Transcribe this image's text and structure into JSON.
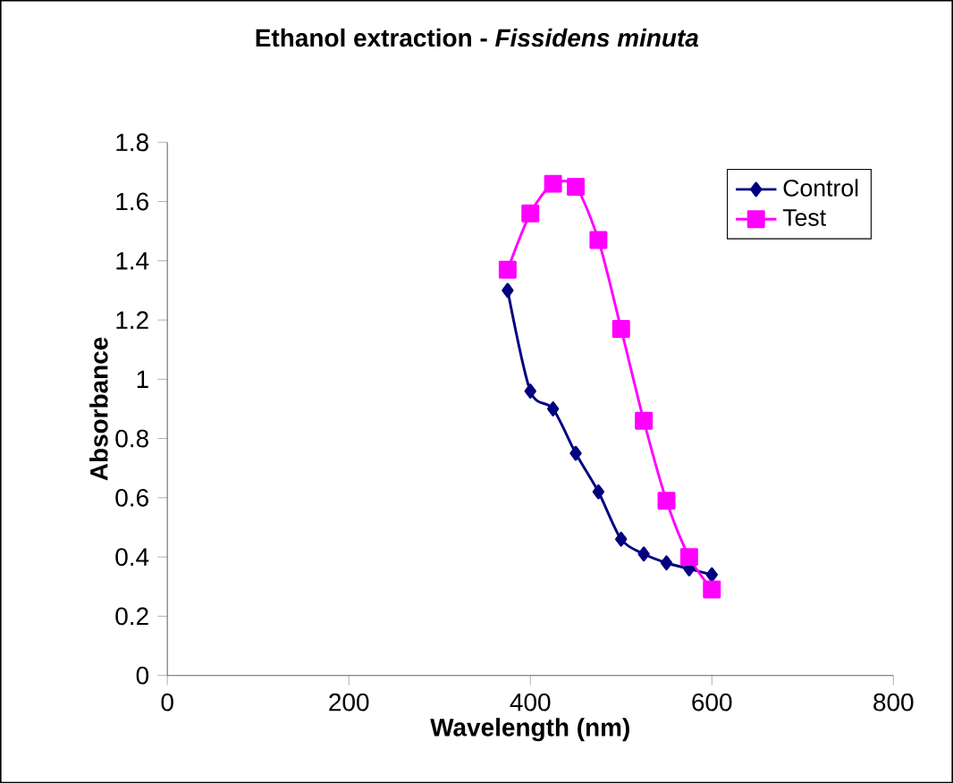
{
  "chart_data": {
    "type": "line",
    "title": "Ethanol extraction - *Fissidens minuta*",
    "xlabel": "Wavelength (nm)",
    "ylabel": "Absorbance",
    "x": [
      375,
      400,
      425,
      450,
      475,
      500,
      525,
      550,
      575,
      600
    ],
    "series": [
      {
        "name": "Control",
        "color": "#000080",
        "marker": "diamond",
        "values": [
          1.3,
          0.96,
          0.9,
          0.75,
          0.62,
          0.46,
          0.41,
          0.38,
          0.36,
          0.34
        ]
      },
      {
        "name": "Test",
        "color": "#ff00ff",
        "marker": "square",
        "values": [
          1.37,
          1.56,
          1.66,
          1.65,
          1.47,
          1.17,
          0.86,
          0.59,
          0.4,
          0.29
        ]
      }
    ],
    "xlim": [
      0,
      800
    ],
    "xticks": [
      0,
      200,
      400,
      600,
      800
    ],
    "ylim": [
      0,
      1.8
    ],
    "yticks": [
      0,
      {
        "value": 0.2,
        "label": "0.2"
      },
      {
        "value": 0.4,
        "label": "0.4"
      },
      {
        "value": 0.6,
        "label": "0.6"
      },
      {
        "value": 0.8,
        "label": "0.8"
      },
      1,
      {
        "value": 1.2,
        "label": "1.2"
      },
      {
        "value": 1.4,
        "label": "1.4"
      },
      {
        "value": 1.6,
        "label": "1.6"
      },
      {
        "value": 1.8,
        "label": "1.8"
      }
    ],
    "grid": false,
    "legend": "top right",
    "line_style": "solid"
  }
}
